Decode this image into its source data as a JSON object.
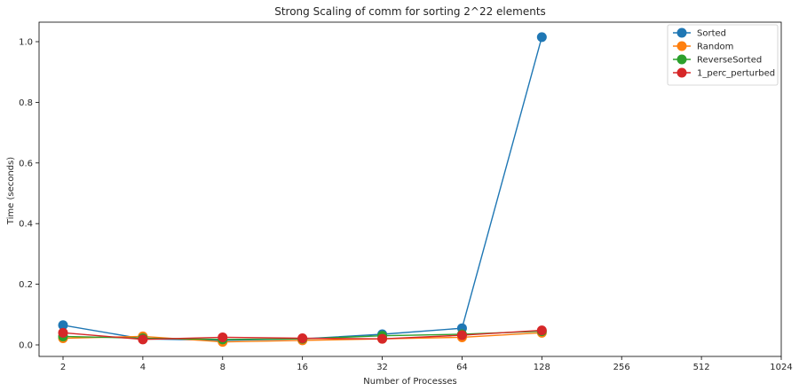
{
  "chart_data": {
    "type": "line",
    "title": "Strong Scaling of comm for sorting 2^22 elements",
    "xlabel": "Number of Processes",
    "ylabel": "Time (seconds)",
    "x_scale": "log2",
    "x_ticks": [
      2,
      4,
      8,
      16,
      32,
      64,
      128,
      256,
      512,
      1024
    ],
    "x_tick_labels": [
      "2",
      "4",
      "8",
      "16",
      "32",
      "64",
      "128",
      "256",
      "512",
      "1024"
    ],
    "y_ticks": [
      0.0,
      0.2,
      0.4,
      0.6,
      0.8,
      1.0
    ],
    "y_tick_labels": [
      "0.0",
      "0.2",
      "0.4",
      "0.6",
      "0.8",
      "1.0"
    ],
    "ylim": [
      -0.04,
      1.06
    ],
    "xlim": [
      2,
      1024
    ],
    "grid": false,
    "legend_position": "top-right",
    "x": [
      2,
      4,
      8,
      16,
      32,
      64,
      128
    ],
    "series": [
      {
        "name": "Sorted",
        "color": "#1f77b4",
        "values": [
          0.065,
          0.02,
          0.015,
          0.02,
          0.035,
          0.055,
          1.015
        ]
      },
      {
        "name": "Random",
        "color": "#ff7f0e",
        "values": [
          0.022,
          0.028,
          0.01,
          0.015,
          0.02,
          0.025,
          0.04
        ]
      },
      {
        "name": "ReverseSorted",
        "color": "#2ca02c",
        "values": [
          0.028,
          0.022,
          0.018,
          0.02,
          0.03,
          0.035,
          0.045
        ]
      },
      {
        "name": "1_perc_perturbed",
        "color": "#d62728",
        "values": [
          0.04,
          0.018,
          0.025,
          0.022,
          0.02,
          0.032,
          0.048
        ]
      }
    ]
  }
}
